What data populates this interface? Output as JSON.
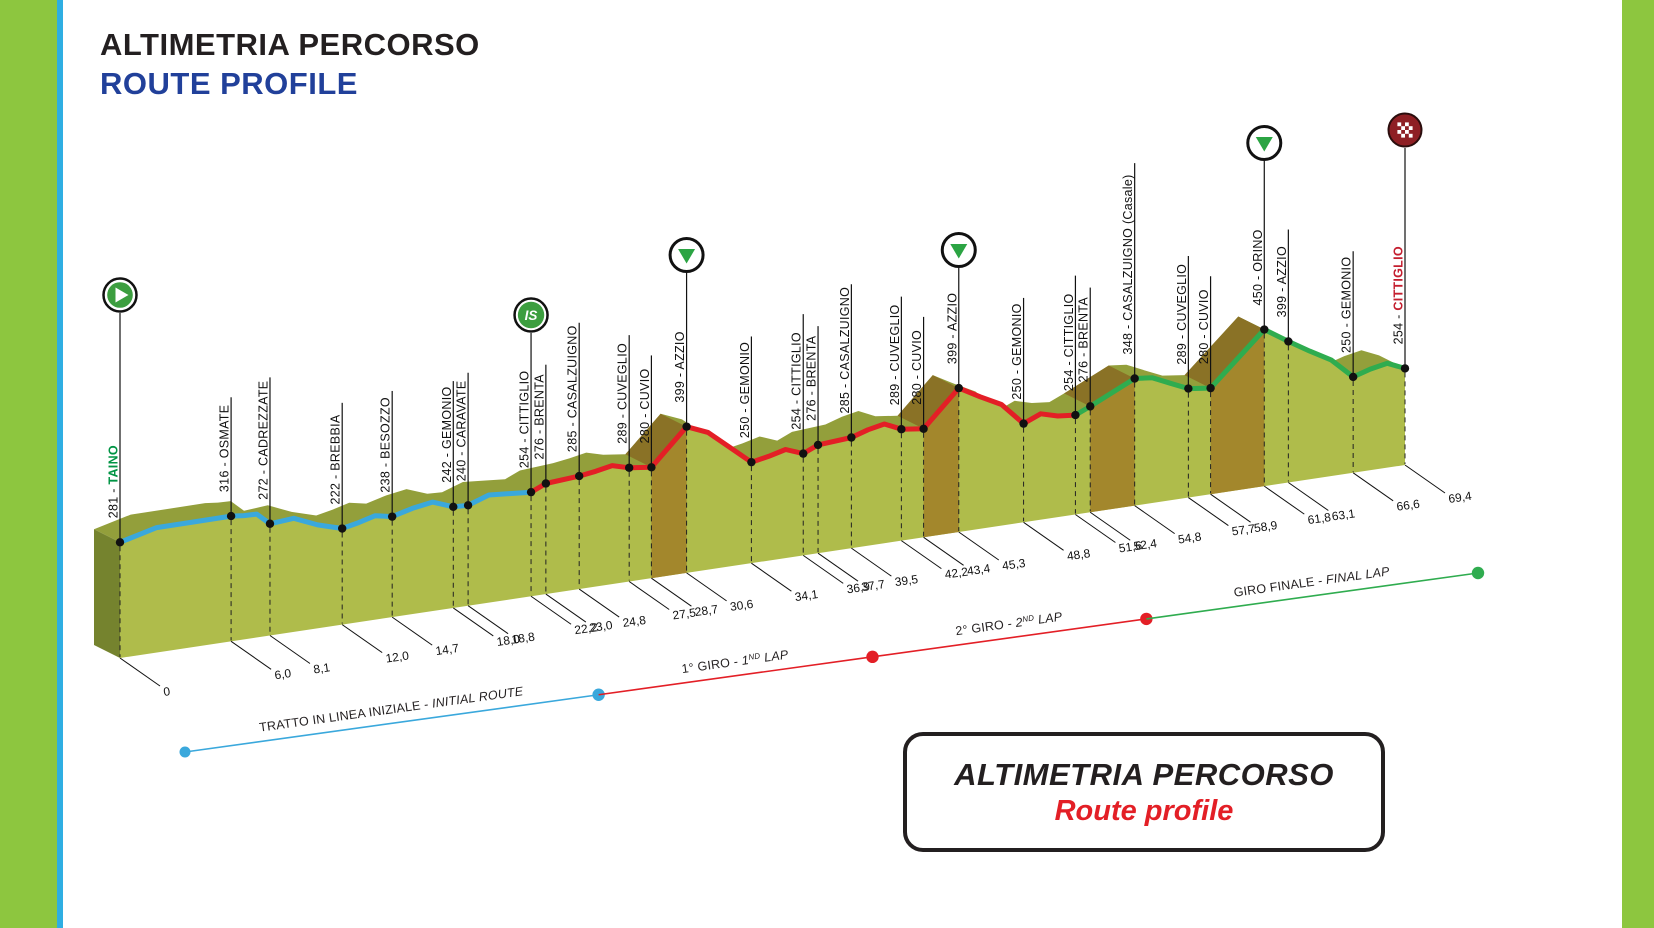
{
  "header": {
    "title_it": "ALTIMETRIA PERCORSO",
    "title_en": "ROUTE PROFILE"
  },
  "footer_box": {
    "title_it": "ALTIMETRIA PERCORSO",
    "title_en": "Route profile"
  },
  "colors": {
    "title_navy": "#21409A",
    "border_green": "#8DC63F",
    "border_cyan": "#2EAEE2",
    "face_front": "#AFBC4B",
    "face_top": "#939F3B",
    "face_side": "#75832E",
    "steep_front": "#A3872C",
    "steep_top": "#8A7226",
    "route_blue": "#3AA8DC",
    "route_red": "#E31F26",
    "route_green": "#2FAC4F",
    "kom_green": "#2BA443",
    "start_green": "#3C9E3F",
    "finish_maroon": "#8E1F24",
    "label_green": "#009444",
    "label_red": "#C41E2F",
    "ink": "#111111"
  },
  "chart_data": {
    "type": "area",
    "title": "ALTIMETRIA PERCORSO - ROUTE PROFILE",
    "x_unit": "km",
    "y_unit": "m",
    "x_range_km": [
      0,
      69.4
    ],
    "y_range_m": [
      200,
      460
    ],
    "points": [
      {
        "km": 0,
        "km_label": "0",
        "elevation_m": 281,
        "name": "TAINO",
        "name_emphasis": "green",
        "icon": "start"
      },
      {
        "km": 6.0,
        "km_label": "6,0",
        "elevation_m": 316,
        "name": "OSMATE"
      },
      {
        "km": 8.1,
        "km_label": "8,1",
        "elevation_m": 272,
        "name": "CADREZZATE"
      },
      {
        "km": 12.0,
        "km_label": "12,0",
        "elevation_m": 222,
        "name": "BREBBIA"
      },
      {
        "km": 14.7,
        "km_label": "14,7",
        "elevation_m": 238,
        "name": "BESOZZO"
      },
      {
        "km": 18.0,
        "km_label": "18,0",
        "elevation_m": 242,
        "name": "GEMONIO"
      },
      {
        "km": 18.8,
        "km_label": "18,8",
        "elevation_m": 240,
        "name": "CARAVATE"
      },
      {
        "km": 22.2,
        "km_label": "22,2",
        "elevation_m": 254,
        "name": "CITTIGLIO",
        "icon": "sprint"
      },
      {
        "km": 23.0,
        "km_label": "23,0",
        "elevation_m": 276,
        "name": "BRENTA"
      },
      {
        "km": 24.8,
        "km_label": "24,8",
        "elevation_m": 285,
        "name": "CASALZUIGNO"
      },
      {
        "km": 27.5,
        "km_label": "27,5",
        "elevation_m": 289,
        "name": "CUVEGLIO"
      },
      {
        "km": 28.7,
        "km_label": "28,7",
        "elevation_m": 280,
        "name": "CUVIO"
      },
      {
        "km": 30.6,
        "km_label": "30,6",
        "elevation_m": 399,
        "name": "AZZIO",
        "icon": "kom",
        "steep_from_prev": true
      },
      {
        "km": 34.1,
        "km_label": "34,1",
        "elevation_m": 250,
        "name": "GEMONIO"
      },
      {
        "km": 36.9,
        "km_label": "36,9",
        "elevation_m": 254,
        "name": "CITTIGLIO"
      },
      {
        "km": 37.7,
        "km_label": "37,7",
        "elevation_m": 276,
        "name": "BRENTA"
      },
      {
        "km": 39.5,
        "km_label": "39,5",
        "elevation_m": 285,
        "name": "CASALZUIGNO"
      },
      {
        "km": 42.2,
        "km_label": "42,2",
        "elevation_m": 289,
        "name": "CUVEGLIO"
      },
      {
        "km": 43.4,
        "km_label": "43,4",
        "elevation_m": 280,
        "name": "CUVIO"
      },
      {
        "km": 45.3,
        "km_label": "45,3",
        "elevation_m": 399,
        "name": "AZZIO",
        "icon": "kom",
        "steep_from_prev": true
      },
      {
        "km": 48.8,
        "km_label": "48,8",
        "elevation_m": 250,
        "name": "GEMONIO"
      },
      {
        "km": 51.6,
        "km_label": "51,6",
        "elevation_m": 254,
        "name": "CITTIGLIO"
      },
      {
        "km": 52.4,
        "km_label": "52,4",
        "elevation_m": 276,
        "name": "BRENTA"
      },
      {
        "km": 54.8,
        "km_label": "54,8",
        "elevation_m": 348,
        "name": "CASALZUIGNO (Casale)",
        "steep_from_prev": true
      },
      {
        "km": 57.7,
        "km_label": "57,7",
        "elevation_m": 289,
        "name": "CUVEGLIO"
      },
      {
        "km": 58.9,
        "km_label": "58,9",
        "elevation_m": 280,
        "name": "CUVIO"
      },
      {
        "km": 61.8,
        "km_label": "61,8",
        "elevation_m": 450,
        "name": "ORINO",
        "icon": "kom",
        "steep_from_prev": true
      },
      {
        "km": 63.1,
        "km_label": "63,1",
        "elevation_m": 399,
        "name": "AZZIO"
      },
      {
        "km": 66.6,
        "km_label": "66,6",
        "elevation_m": 250,
        "name": "GEMONIO"
      },
      {
        "km": 69.4,
        "km_label": "69,4",
        "elevation_m": 254,
        "name": "CITTIGLIO",
        "name_emphasis": "red",
        "icon": "finish"
      }
    ],
    "lap_segments": [
      {
        "name": "initial-route",
        "label_it": "TRATTO IN LINEA INIZIALE",
        "label_en": "INITIAL ROUTE",
        "km_start": 0,
        "km_end": 22.2,
        "route": "blue"
      },
      {
        "name": "lap-1",
        "label_it": "1° GIRO",
        "label_en_pre": "1",
        "label_en_sup": "ND",
        "label_en_post": " LAP",
        "km_start": 22.2,
        "km_end": 36.9,
        "route": "red"
      },
      {
        "name": "lap-2",
        "label_it": "2° GIRO",
        "label_en_pre": "2",
        "label_en_sup": "ND",
        "label_en_post": " LAP",
        "km_start": 36.9,
        "km_end": 51.6,
        "route": "red"
      },
      {
        "name": "final-lap",
        "label_it": "GIRO FINALE",
        "label_en": "FINAL LAP",
        "km_start": 51.6,
        "km_end": 69.4,
        "route": "green"
      }
    ]
  }
}
